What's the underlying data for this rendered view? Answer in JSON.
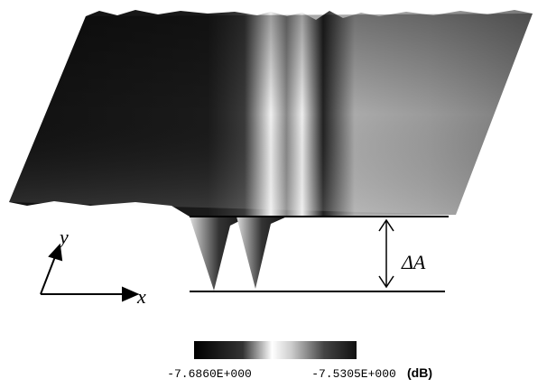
{
  "axes": {
    "y": "y",
    "x": "x"
  },
  "annotation": "ΔA",
  "colorbar": {
    "min_label": "-7.6860E+000",
    "max_label": "-7.5305E+000",
    "unit": "(dB)"
  }
}
